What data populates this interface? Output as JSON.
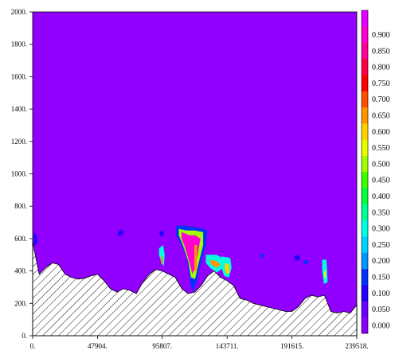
{
  "chart_data": {
    "type": "heatmap",
    "title": "",
    "xlabel": "",
    "ylabel": "",
    "xlim": [
      0,
      239518
    ],
    "ylim": [
      0,
      2000
    ],
    "x_ticks": [
      {
        "value": 0,
        "label": "0."
      },
      {
        "value": 47904,
        "label": "47904."
      },
      {
        "value": 95807,
        "label": "95807."
      },
      {
        "value": 143711,
        "label": "143711."
      },
      {
        "value": 191615,
        "label": "191615."
      },
      {
        "value": 239518,
        "label": "239518."
      }
    ],
    "y_ticks": [
      {
        "value": 0,
        "label": "0."
      },
      {
        "value": 200,
        "label": "200."
      },
      {
        "value": 400,
        "label": "400."
      },
      {
        "value": 600,
        "label": "600."
      },
      {
        "value": 800,
        "label": "800."
      },
      {
        "value": 1000,
        "label": "1000."
      },
      {
        "value": 1200,
        "label": "1200."
      },
      {
        "value": 1400,
        "label": "1400."
      },
      {
        "value": 1600,
        "label": "1600."
      },
      {
        "value": 1800,
        "label": "1800."
      },
      {
        "value": 2000,
        "label": "2000."
      }
    ],
    "background_color": "#9100ff",
    "colorbar": {
      "levels": [
        {
          "label": "0.000",
          "color": "#8a00ff"
        },
        {
          "label": "0.050",
          "color": "#6a00ff"
        },
        {
          "label": "0.100",
          "color": "#2200ff"
        },
        {
          "label": "0.150",
          "color": "#0032ff"
        },
        {
          "label": "0.200",
          "color": "#0096ff"
        },
        {
          "label": "0.250",
          "color": "#00d2ff"
        },
        {
          "label": "0.300",
          "color": "#00ffe0"
        },
        {
          "label": "0.350",
          "color": "#00ff96"
        },
        {
          "label": "0.400",
          "color": "#00ff3c"
        },
        {
          "label": "0.450",
          "color": "#3cff00"
        },
        {
          "label": "0.500",
          "color": "#a0ff00"
        },
        {
          "label": "0.550",
          "color": "#e6ff00"
        },
        {
          "label": "0.600",
          "color": "#ffd200"
        },
        {
          "label": "0.650",
          "color": "#ff9600"
        },
        {
          "label": "0.700",
          "color": "#ff5000"
        },
        {
          "label": "0.750",
          "color": "#ff0000"
        },
        {
          "label": "0.800",
          "color": "#ff0046"
        },
        {
          "label": "0.850",
          "color": "#ff0096"
        },
        {
          "label": "0.900",
          "color": "#ff00d2"
        },
        {
          "label": "",
          "color": "#e600ff"
        }
      ]
    },
    "terrain_profile": [
      [
        0,
        580
      ],
      [
        4800,
        380
      ],
      [
        9600,
        420
      ],
      [
        14400,
        450
      ],
      [
        19200,
        440
      ],
      [
        24000,
        380
      ],
      [
        28800,
        360
      ],
      [
        33600,
        350
      ],
      [
        38400,
        355
      ],
      [
        43100,
        370
      ],
      [
        47900,
        380
      ],
      [
        52700,
        340
      ],
      [
        57500,
        290
      ],
      [
        62300,
        270
      ],
      [
        67100,
        290
      ],
      [
        71900,
        280
      ],
      [
        76600,
        260
      ],
      [
        81400,
        330
      ],
      [
        86200,
        380
      ],
      [
        91000,
        410
      ],
      [
        95800,
        400
      ],
      [
        100600,
        380
      ],
      [
        105400,
        360
      ],
      [
        110200,
        290
      ],
      [
        115000,
        260
      ],
      [
        119800,
        270
      ],
      [
        124500,
        310
      ],
      [
        129300,
        370
      ],
      [
        134100,
        400
      ],
      [
        138900,
        360
      ],
      [
        143700,
        340
      ],
      [
        148500,
        310
      ],
      [
        153300,
        230
      ],
      [
        158100,
        220
      ],
      [
        162900,
        200
      ],
      [
        167700,
        190
      ],
      [
        172500,
        180
      ],
      [
        177300,
        170
      ],
      [
        182000,
        160
      ],
      [
        186800,
        150
      ],
      [
        191600,
        150
      ],
      [
        196400,
        180
      ],
      [
        201200,
        230
      ],
      [
        206000,
        250
      ],
      [
        210800,
        240
      ],
      [
        215600,
        250
      ],
      [
        220400,
        150
      ],
      [
        225100,
        140
      ],
      [
        229900,
        150
      ],
      [
        234700,
        140
      ],
      [
        239518,
        190
      ]
    ],
    "contour_patches": [
      {
        "level": 2,
        "points": [
          [
            900,
            640
          ],
          [
            3000,
            620
          ],
          [
            3600,
            580
          ],
          [
            2600,
            560
          ],
          [
            900,
            560
          ]
        ]
      },
      {
        "level": 2,
        "points": [
          [
            63000,
            640
          ],
          [
            66000,
            660
          ],
          [
            67200,
            640
          ],
          [
            65400,
            615
          ],
          [
            63000,
            620
          ]
        ]
      },
      {
        "level": 2,
        "points": [
          [
            93400,
            640
          ],
          [
            96400,
            650
          ],
          [
            97000,
            620
          ],
          [
            94600,
            610
          ]
        ]
      },
      {
        "level": 6,
        "points": [
          [
            93400,
            540
          ],
          [
            96400,
            560
          ],
          [
            97600,
            500
          ],
          [
            97000,
            430
          ],
          [
            95200,
            450
          ],
          [
            93400,
            500
          ]
        ]
      },
      {
        "level": 13,
        "points": [
          [
            94600,
            480
          ],
          [
            96000,
            500
          ],
          [
            96400,
            450
          ],
          [
            95200,
            440
          ]
        ]
      },
      {
        "level": 3,
        "points": [
          [
            106000,
            680
          ],
          [
            112000,
            680
          ],
          [
            121000,
            670
          ],
          [
            126000,
            660
          ],
          [
            129000,
            650
          ],
          [
            128000,
            560
          ],
          [
            124000,
            440
          ],
          [
            121000,
            330
          ],
          [
            118000,
            270
          ],
          [
            116000,
            360
          ],
          [
            114000,
            480
          ],
          [
            110000,
            560
          ],
          [
            106000,
            620
          ]
        ]
      },
      {
        "level": 10,
        "points": [
          [
            108000,
            660
          ],
          [
            114000,
            650
          ],
          [
            120000,
            650
          ],
          [
            126000,
            640
          ],
          [
            126000,
            560
          ],
          [
            123000,
            460
          ],
          [
            120000,
            350
          ],
          [
            117000,
            360
          ],
          [
            115000,
            460
          ],
          [
            111000,
            560
          ],
          [
            108000,
            620
          ]
        ]
      },
      {
        "level": 18,
        "points": [
          [
            110000,
            640
          ],
          [
            116000,
            620
          ],
          [
            120000,
            620
          ],
          [
            124000,
            600
          ],
          [
            122000,
            500
          ],
          [
            120000,
            420
          ],
          [
            118000,
            380
          ],
          [
            116000,
            450
          ],
          [
            112000,
            560
          ],
          [
            110000,
            600
          ]
        ]
      },
      {
        "level": 13,
        "points": [
          [
            119500,
            560
          ],
          [
            121500,
            560
          ],
          [
            121500,
            400
          ],
          [
            119500,
            400
          ]
        ]
      },
      {
        "level": 6,
        "points": [
          [
            128000,
            500
          ],
          [
            136000,
            500
          ],
          [
            140000,
            480
          ],
          [
            141000,
            420
          ],
          [
            136000,
            390
          ],
          [
            131000,
            420
          ],
          [
            128000,
            450
          ]
        ]
      },
      {
        "level": 13,
        "points": [
          [
            131000,
            470
          ],
          [
            136000,
            460
          ],
          [
            139000,
            440
          ],
          [
            136000,
            420
          ],
          [
            132000,
            440
          ]
        ]
      },
      {
        "level": 6,
        "points": [
          [
            139500,
            490
          ],
          [
            146000,
            480
          ],
          [
            147000,
            420
          ],
          [
            145000,
            360
          ],
          [
            141500,
            370
          ],
          [
            139500,
            420
          ]
        ]
      },
      {
        "level": 12,
        "points": [
          [
            142000,
            450
          ],
          [
            145000,
            440
          ],
          [
            145500,
            390
          ],
          [
            143000,
            380
          ],
          [
            142000,
            410
          ]
        ]
      },
      {
        "level": 3,
        "points": [
          [
            168000,
            500
          ],
          [
            170000,
            510
          ],
          [
            171000,
            490
          ],
          [
            169000,
            480
          ]
        ]
      },
      {
        "level": 2,
        "points": [
          [
            193000,
            490
          ],
          [
            197000,
            500
          ],
          [
            197500,
            470
          ],
          [
            194000,
            460
          ]
        ]
      },
      {
        "level": 3,
        "points": [
          [
            200000,
            460
          ],
          [
            203000,
            470
          ],
          [
            204000,
            450
          ],
          [
            201000,
            440
          ]
        ]
      },
      {
        "level": 6,
        "points": [
          [
            214000,
            470
          ],
          [
            217000,
            470
          ],
          [
            217600,
            400
          ],
          [
            218000,
            330
          ],
          [
            215200,
            320
          ],
          [
            214000,
            400
          ]
        ]
      },
      {
        "level": 11,
        "points": [
          [
            215200,
            400
          ],
          [
            216500,
            400
          ],
          [
            216700,
            360
          ],
          [
            215500,
            355
          ]
        ]
      }
    ]
  }
}
